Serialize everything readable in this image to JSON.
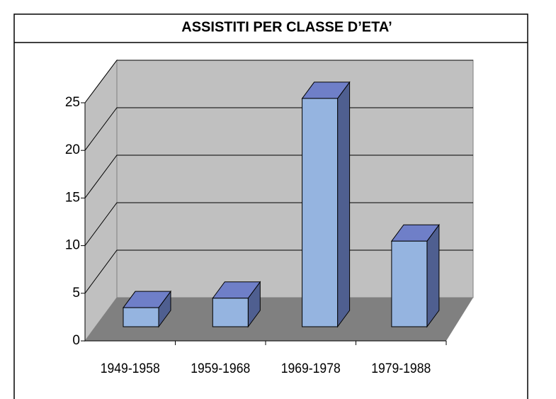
{
  "chart_data": {
    "type": "bar3d",
    "title": "ASSISTITI PER CLASSE D’ETA’",
    "categories": [
      "1949-1958",
      "1959-1968",
      "1969-1978",
      "1979-1988"
    ],
    "values": [
      2,
      3,
      24,
      9
    ],
    "color": "#95b4e0",
    "ylim": [
      0,
      25
    ],
    "yticks": [
      0,
      5,
      10,
      15,
      20,
      25
    ],
    "grid": true
  }
}
